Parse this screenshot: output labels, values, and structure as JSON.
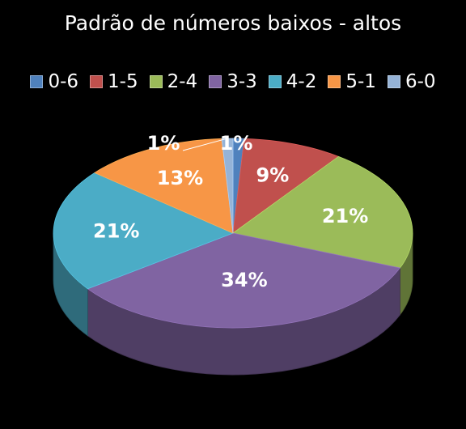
{
  "chart_data": {
    "type": "pie",
    "title": "Padrão de números baixos - altos",
    "legend_position": "top",
    "three_d": true,
    "categories": [
      "0-6",
      "1-5",
      "2-4",
      "3-3",
      "4-2",
      "5-1",
      "6-0"
    ],
    "values": [
      1,
      9,
      21,
      34,
      21,
      13,
      1
    ],
    "labels": [
      "1%",
      "9%",
      "21%",
      "34%",
      "21%",
      "13%",
      "1%"
    ],
    "colors": [
      "#4f81bd",
      "#c0504d",
      "#9bbb59",
      "#8064a2",
      "#4bacc6",
      "#f79646",
      "#95b3d7"
    ]
  }
}
